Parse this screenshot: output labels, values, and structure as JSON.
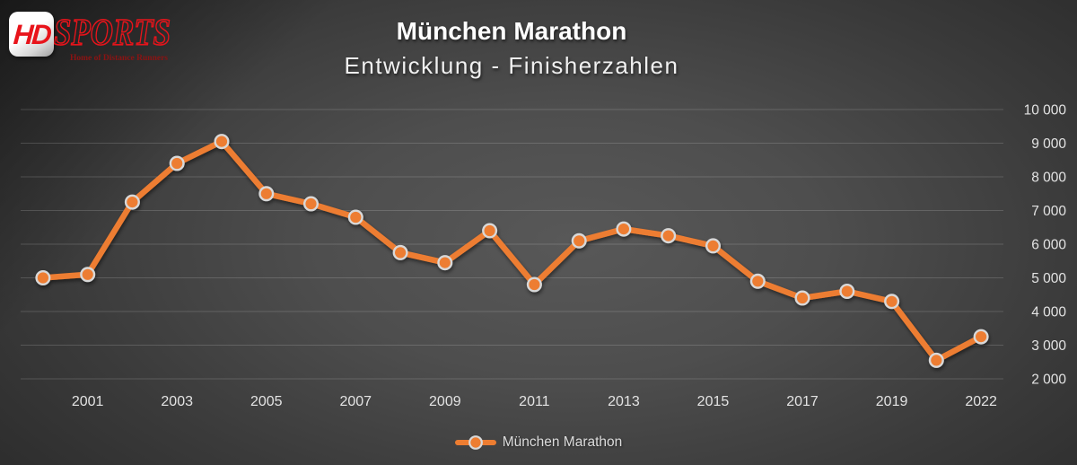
{
  "logo": {
    "hd": "HD",
    "sports": "SPORTS",
    "tagline": "Home of Distance Runners"
  },
  "header": {
    "title": "München Marathon",
    "subtitle": "Entwicklung - Finisherzahlen"
  },
  "legend": {
    "label": "München Marathon"
  },
  "colors": {
    "series_orange": "#ED7D31",
    "marker_ring": "#D8D8D8",
    "grid_line": "rgba(255,255,255,0.16)",
    "axis_text": "#E3E3E3",
    "logo_red": "#E8141B",
    "tagline_red": "#8C1313",
    "title_white": "#FFFFFF"
  },
  "chart_data": {
    "type": "line",
    "title": "München Marathon",
    "subtitle": "Entwicklung - Finisherzahlen",
    "categories": [
      "2000",
      "2001",
      "2002",
      "2003",
      "2004",
      "2005",
      "2006",
      "2007",
      "2008",
      "2009",
      "2010",
      "2011",
      "2012",
      "2013",
      "2014",
      "2015",
      "2016",
      "2017",
      "2018",
      "2019",
      "2021",
      "2022"
    ],
    "series": [
      {
        "name": "München Marathon",
        "values": [
          5000,
          5100,
          7250,
          8400,
          9050,
          7500,
          7200,
          6800,
          5750,
          5450,
          6400,
          4800,
          6100,
          6450,
          6250,
          5950,
          4900,
          4400,
          4600,
          4300,
          2550,
          3250
        ]
      }
    ],
    "x_ticks_shown": [
      "2001",
      "2003",
      "2005",
      "2007",
      "2009",
      "2011",
      "2013",
      "2015",
      "2017",
      "2019",
      "2022"
    ],
    "y_ticks": [
      {
        "value": 2000,
        "label": "2 000"
      },
      {
        "value": 3000,
        "label": "3 000"
      },
      {
        "value": 4000,
        "label": "4 000"
      },
      {
        "value": 5000,
        "label": "5 000"
      },
      {
        "value": 6000,
        "label": "6 000"
      },
      {
        "value": 7000,
        "label": "7 000"
      },
      {
        "value": 8000,
        "label": "8 000"
      },
      {
        "value": 9000,
        "label": "9 000"
      },
      {
        "value": 10000,
        "label": "10 000"
      }
    ],
    "ylim": [
      2000,
      10000
    ],
    "xlabel": "",
    "ylabel": "",
    "y_axis_side": "right",
    "grid": "horizontal",
    "legend_position": "bottom",
    "marker": "circle"
  }
}
